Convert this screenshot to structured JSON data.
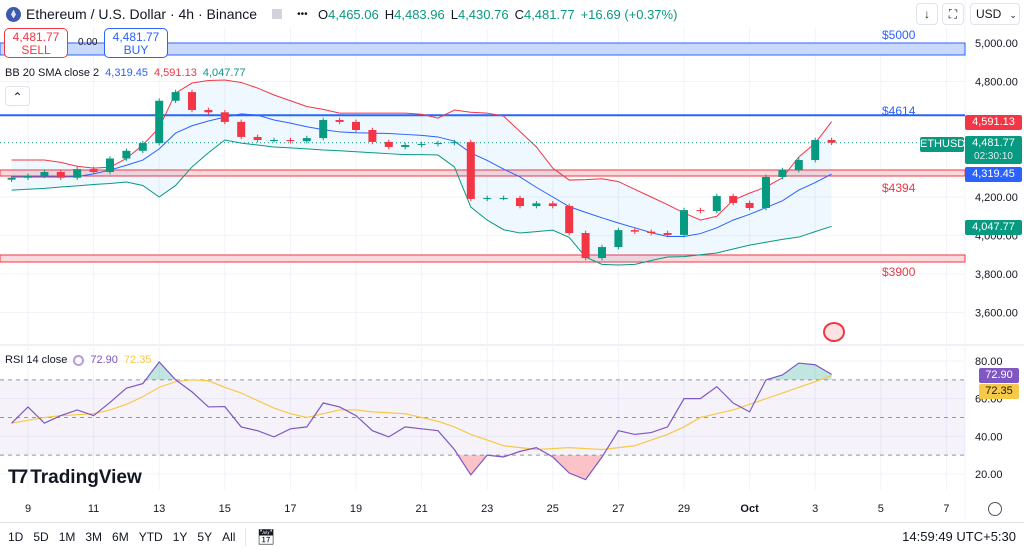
{
  "header": {
    "symbol": "Ethereum / U.S. Dollar · 4h · Binance",
    "more": "•••",
    "open": "4,465.06",
    "high": "4,483.96",
    "low": "4,430.76",
    "close": "4,481.77",
    "change": "+16.69 (+0.37%)",
    "o_label": "O",
    "h_label": "H",
    "l_label": "L",
    "c_label": "C"
  },
  "trade": {
    "sell_price": "4,481.77",
    "sell_label": "SELL",
    "spread": "0.00",
    "buy_price": "4,481.77",
    "buy_label": "BUY"
  },
  "toolbar_right": {
    "currency": "USD"
  },
  "bb_legend": {
    "title": "BB 20 SMA close 2",
    "basis": "4,319.45",
    "upper": "4,591.13",
    "lower": "4,047.77"
  },
  "rsi_legend": {
    "title": "RSI 14 close",
    "rsi": "72.90",
    "ma": "72.35"
  },
  "levels": [
    {
      "label": "$5000",
      "price": 5000,
      "color": "#2962ff"
    },
    {
      "label": "$4614",
      "price": 4614,
      "color": "#2962ff"
    },
    {
      "label": "$4394",
      "price": 4394,
      "color": "#f23645"
    },
    {
      "label": "$3900",
      "price": 3900,
      "color": "#f23645"
    }
  ],
  "price_tags": {
    "upper": "4,591.13",
    "symbol": "ETHUSD",
    "last": "4,481.77",
    "countdown": "02:30:10",
    "basis": "4,319.45",
    "lower": "4,047.77",
    "rsi": "72.90",
    "rsi_ma": "72.35"
  },
  "logo": "TradingView",
  "timeframes": [
    "1D",
    "5D",
    "1M",
    "3M",
    "6M",
    "YTD",
    "1Y",
    "5Y",
    "All"
  ],
  "clock": "14:59:49 UTC+5:30",
  "colors": {
    "up": "#089981",
    "down": "#f23645",
    "basis": "#2962ff",
    "upper": "#f23645",
    "lower": "#089981",
    "rsi": "#7e57c2",
    "rsi_ma": "#f7c948"
  },
  "chart_data": {
    "type": "candlestick",
    "interval": "12h samples (closes)",
    "x": [
      "Sep 8 12:00",
      "Sep 9 00:00",
      "Sep 9 12:00",
      "Sep 10 00:00",
      "Sep 10 12:00",
      "Sep 11 00:00",
      "Sep 11 12:00",
      "Sep 12 00:00",
      "Sep 12 12:00",
      "Sep 13 00:00",
      "Sep 13 12:00",
      "Sep 14 00:00",
      "Sep 14 12:00",
      "Sep 15 00:00",
      "Sep 15 12:00",
      "Sep 16 00:00",
      "Sep 16 12:00",
      "Sep 17 00:00",
      "Sep 17 12:00",
      "Sep 18 00:00",
      "Sep 18 12:00",
      "Sep 19 00:00",
      "Sep 19 12:00",
      "Sep 20 00:00",
      "Sep 20 12:00",
      "Sep 21 00:00",
      "Sep 21 12:00",
      "Sep 22 00:00",
      "Sep 22 12:00",
      "Sep 23 00:00",
      "Sep 23 12:00",
      "Sep 24 00:00",
      "Sep 24 12:00",
      "Sep 25 00:00",
      "Sep 25 12:00",
      "Sep 26 00:00",
      "Sep 26 12:00",
      "Sep 27 00:00",
      "Sep 27 12:00",
      "Sep 28 00:00",
      "Sep 28 12:00",
      "Sep 29 00:00",
      "Sep 29 12:00",
      "Sep 30 00:00",
      "Sep 30 12:00",
      "Oct 1 00:00",
      "Oct 1 12:00",
      "Oct 2 00:00",
      "Oct 2 12:00",
      "Oct 3 00:00",
      "Oct 3 12:00"
    ],
    "close": [
      4300,
      4310,
      4330,
      4300,
      4345,
      4330,
      4400,
      4440,
      4480,
      4700,
      4745,
      4652,
      4640,
      4590,
      4512,
      4496,
      4496,
      4490,
      4506,
      4600,
      4590,
      4548,
      4486,
      4460,
      4470,
      4475,
      4480,
      4485,
      4190,
      4195,
      4195,
      4153,
      4167,
      4153,
      4013,
      3883,
      3940,
      4028,
      4020,
      4013,
      4003,
      4132,
      4127,
      4205,
      4169,
      4143,
      4304,
      4340,
      4392,
      4496,
      4481.77
    ],
    "bb_basis": [
      4304,
      4304,
      4304,
      4304,
      4306,
      4320,
      4340,
      4365,
      4392,
      4450,
      4532,
      4570,
      4595,
      4615,
      4632,
      4625,
      4600,
      4584,
      4565,
      4550,
      4538,
      4534,
      4532,
      4530,
      4525,
      4520,
      4512,
      4490,
      4429,
      4390,
      4345,
      4304,
      4250,
      4200,
      4150,
      4120,
      4092,
      4065,
      4040,
      4015,
      3995,
      3995,
      4010,
      4040,
      4080,
      4110,
      4145,
      4180,
      4236,
      4275,
      4319.45
    ],
    "bb_upper": [
      4392,
      4392,
      4392,
      4380,
      4360,
      4350,
      4355,
      4400,
      4470,
      4560,
      4740,
      4792,
      4805,
      4808,
      4795,
      4766,
      4730,
      4700,
      4670,
      4655,
      4636,
      4636,
      4636,
      4636,
      4636,
      4630,
      4610,
      4652,
      4640,
      4636,
      4620,
      4540,
      4460,
      4350,
      4288,
      4290,
      4295,
      4280,
      4240,
      4200,
      4160,
      4117,
      4080,
      4100,
      4184,
      4220,
      4252,
      4300,
      4408,
      4480,
      4591.13
    ],
    "bb_lower": [
      4236,
      4240,
      4245,
      4252,
      4258,
      4265,
      4270,
      4278,
      4260,
      4200,
      4260,
      4356,
      4430,
      4496,
      4480,
      4470,
      4460,
      4455,
      4450,
      4444,
      4440,
      4435,
      4430,
      4425,
      4420,
      4420,
      4418,
      4356,
      4148,
      4080,
      4030,
      4013,
      4020,
      4028,
      3990,
      3888,
      3850,
      3847,
      3850,
      3870,
      3888,
      3890,
      3900,
      3909,
      3930,
      3950,
      3965,
      3980,
      3992,
      4020,
      4047.77
    ],
    "rsi": [
      47,
      55.6,
      47,
      51,
      54,
      51,
      58,
      65.6,
      68,
      79.5,
      70,
      63.6,
      55.6,
      55.8,
      45,
      43,
      39.7,
      44,
      45,
      57.7,
      55.6,
      51,
      43,
      39.7,
      45,
      44,
      43,
      33,
      19.5,
      30,
      29,
      32,
      34,
      29,
      20.5,
      17,
      29,
      43,
      41,
      42,
      45,
      60,
      60,
      66.4,
      57.7,
      53,
      70,
      72.6,
      78.9,
      78,
      72.9
    ],
    "rsi_ma": [
      47,
      48.5,
      50,
      51,
      51.5,
      52,
      54,
      57,
      61,
      66,
      69,
      70,
      69.5,
      66,
      63,
      59,
      55,
      52,
      50,
      52,
      54,
      54,
      53,
      52.5,
      52,
      50,
      48,
      45,
      41,
      38,
      35,
      34,
      33,
      33.5,
      34,
      33.5,
      33,
      34,
      35,
      38,
      41,
      45,
      50,
      52,
      54,
      57,
      60,
      63,
      66,
      69,
      72.35
    ],
    "price_ticks": [
      5000,
      4800,
      4200,
      4000,
      3800,
      3600
    ],
    "price_tick_labels": [
      "5,000.00",
      "4,800.00",
      "4,200.00",
      "4,000.00",
      "3,800.00",
      "3,600.00"
    ],
    "rsi_ticks": [
      80,
      60,
      40,
      20
    ],
    "rsi_tick_labels": [
      "80.00",
      "60.00",
      "40.00",
      "20.00"
    ],
    "rsi_bands": [
      70,
      50,
      30
    ],
    "x_ticks": [
      "9",
      "11",
      "13",
      "15",
      "17",
      "19",
      "21",
      "23",
      "25",
      "27",
      "29",
      "Oct",
      "3",
      "5",
      "7"
    ],
    "grid": true
  }
}
